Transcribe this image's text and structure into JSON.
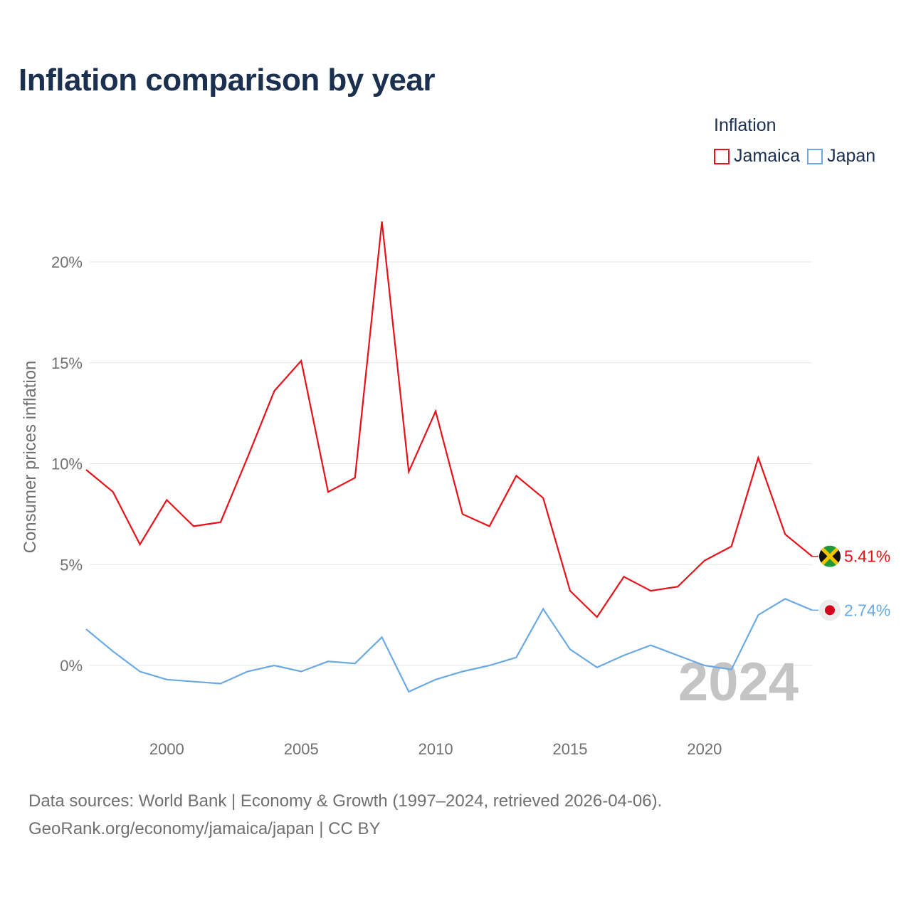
{
  "title": "Inflation comparison by year",
  "legend": {
    "title": "Inflation",
    "items": [
      {
        "label": "Jamaica",
        "color": "#e8111a"
      },
      {
        "label": "Japan",
        "color": "#6aaae4"
      }
    ]
  },
  "footer": {
    "line1": "Data sources: World Bank | Economy & Growth (1997–2024, retrieved 2026-04-06).",
    "line2": "GeoRank.org/economy/jamaica/japan | CC BY"
  },
  "chart_data": {
    "type": "line",
    "title": "Inflation comparison by year",
    "xlabel": "",
    "ylabel": "Consumer prices inflation",
    "xlim": [
      1997,
      2024
    ],
    "ylim": [
      -2.5,
      22
    ],
    "x_ticks": [
      2000,
      2005,
      2010,
      2015,
      2020
    ],
    "y_ticks": [
      {
        "value": 0,
        "label": "0%"
      },
      {
        "value": 5,
        "label": "5%"
      },
      {
        "value": 10,
        "label": "10%"
      },
      {
        "value": 15,
        "label": "15%"
      },
      {
        "value": 20,
        "label": "20%"
      }
    ],
    "grid": true,
    "legend_position": "top-right",
    "year_watermark": "2024",
    "x": [
      1997,
      1998,
      1999,
      2000,
      2001,
      2002,
      2003,
      2004,
      2005,
      2006,
      2007,
      2008,
      2009,
      2010,
      2011,
      2012,
      2013,
      2014,
      2015,
      2016,
      2017,
      2018,
      2019,
      2020,
      2021,
      2022,
      2023,
      2024
    ],
    "series": [
      {
        "name": "Jamaica",
        "color": "#e8111a",
        "end_label": "5.41%",
        "flag": "jamaica-flag",
        "values": [
          9.7,
          8.6,
          6.0,
          8.2,
          6.9,
          7.1,
          10.3,
          13.6,
          15.1,
          8.6,
          9.3,
          22.0,
          9.6,
          12.6,
          7.5,
          6.9,
          9.4,
          8.3,
          3.7,
          2.4,
          4.4,
          3.7,
          3.9,
          5.2,
          5.9,
          10.3,
          6.5,
          5.41
        ]
      },
      {
        "name": "Japan",
        "color": "#6aaae4",
        "end_label": "2.74%",
        "flag": "japan-flag",
        "values": [
          1.8,
          0.7,
          -0.3,
          -0.7,
          -0.8,
          -0.9,
          -0.3,
          0.0,
          -0.3,
          0.2,
          0.1,
          1.4,
          -1.3,
          -0.7,
          -0.3,
          0.0,
          0.4,
          2.8,
          0.8,
          -0.1,
          0.5,
          1.0,
          0.5,
          0.0,
          -0.2,
          2.5,
          3.3,
          2.74
        ]
      }
    ]
  }
}
